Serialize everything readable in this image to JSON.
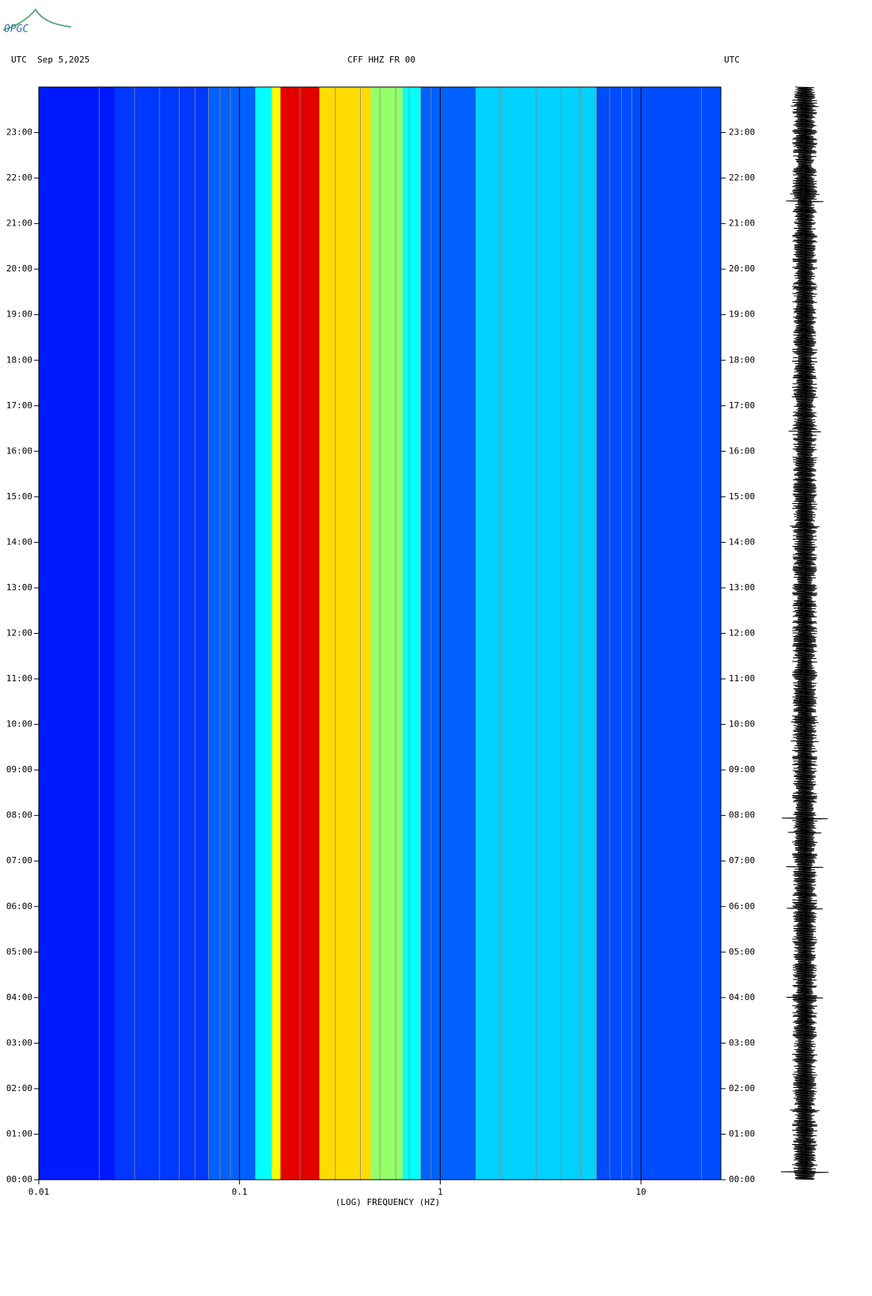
{
  "logo": "OPGC",
  "chart_data": {
    "type": "spectrogram",
    "title": "CFF HHZ FR 00",
    "date_label": "UTC  Sep 5,2025",
    "right_label": "UTC",
    "xlabel": "(LOG) FREQUENCY (HZ)",
    "xscale": "log",
    "xlim": [
      0.01,
      25
    ],
    "xticks": [
      0.01,
      0.1,
      1,
      10
    ],
    "ylim": [
      0,
      24
    ],
    "yticks": [
      {
        "value": 0,
        "label": "00:00"
      },
      {
        "value": 1,
        "label": "01:00"
      },
      {
        "value": 2,
        "label": "02:00"
      },
      {
        "value": 3,
        "label": "03:00"
      },
      {
        "value": 4,
        "label": "04:00"
      },
      {
        "value": 5,
        "label": "05:00"
      },
      {
        "value": 6,
        "label": "06:00"
      },
      {
        "value": 7,
        "label": "07:00"
      },
      {
        "value": 8,
        "label": "08:00"
      },
      {
        "value": 9,
        "label": "09:00"
      },
      {
        "value": 10,
        "label": "10:00"
      },
      {
        "value": 11,
        "label": "11:00"
      },
      {
        "value": 12,
        "label": "12:00"
      },
      {
        "value": 13,
        "label": "13:00"
      },
      {
        "value": 14,
        "label": "14:00"
      },
      {
        "value": 15,
        "label": "15:00"
      },
      {
        "value": 16,
        "label": "16:00"
      },
      {
        "value": 17,
        "label": "17:00"
      },
      {
        "value": 18,
        "label": "18:00"
      },
      {
        "value": 19,
        "label": "19:00"
      },
      {
        "value": 20,
        "label": "20:00"
      },
      {
        "value": 21,
        "label": "21:00"
      },
      {
        "value": 22,
        "label": "22:00"
      },
      {
        "value": 23,
        "label": "23:00"
      }
    ],
    "bins": [
      0.01,
      0.024,
      0.07,
      0.12,
      0.145,
      0.16,
      0.25,
      0.45,
      0.65,
      0.8,
      1.5,
      6,
      25
    ],
    "levels": [
      0.15,
      0.18,
      0.22,
      0.38,
      0.62,
      0.9,
      0.66,
      0.52,
      0.38,
      0.22,
      0.33,
      0.2
    ],
    "grid": true
  }
}
